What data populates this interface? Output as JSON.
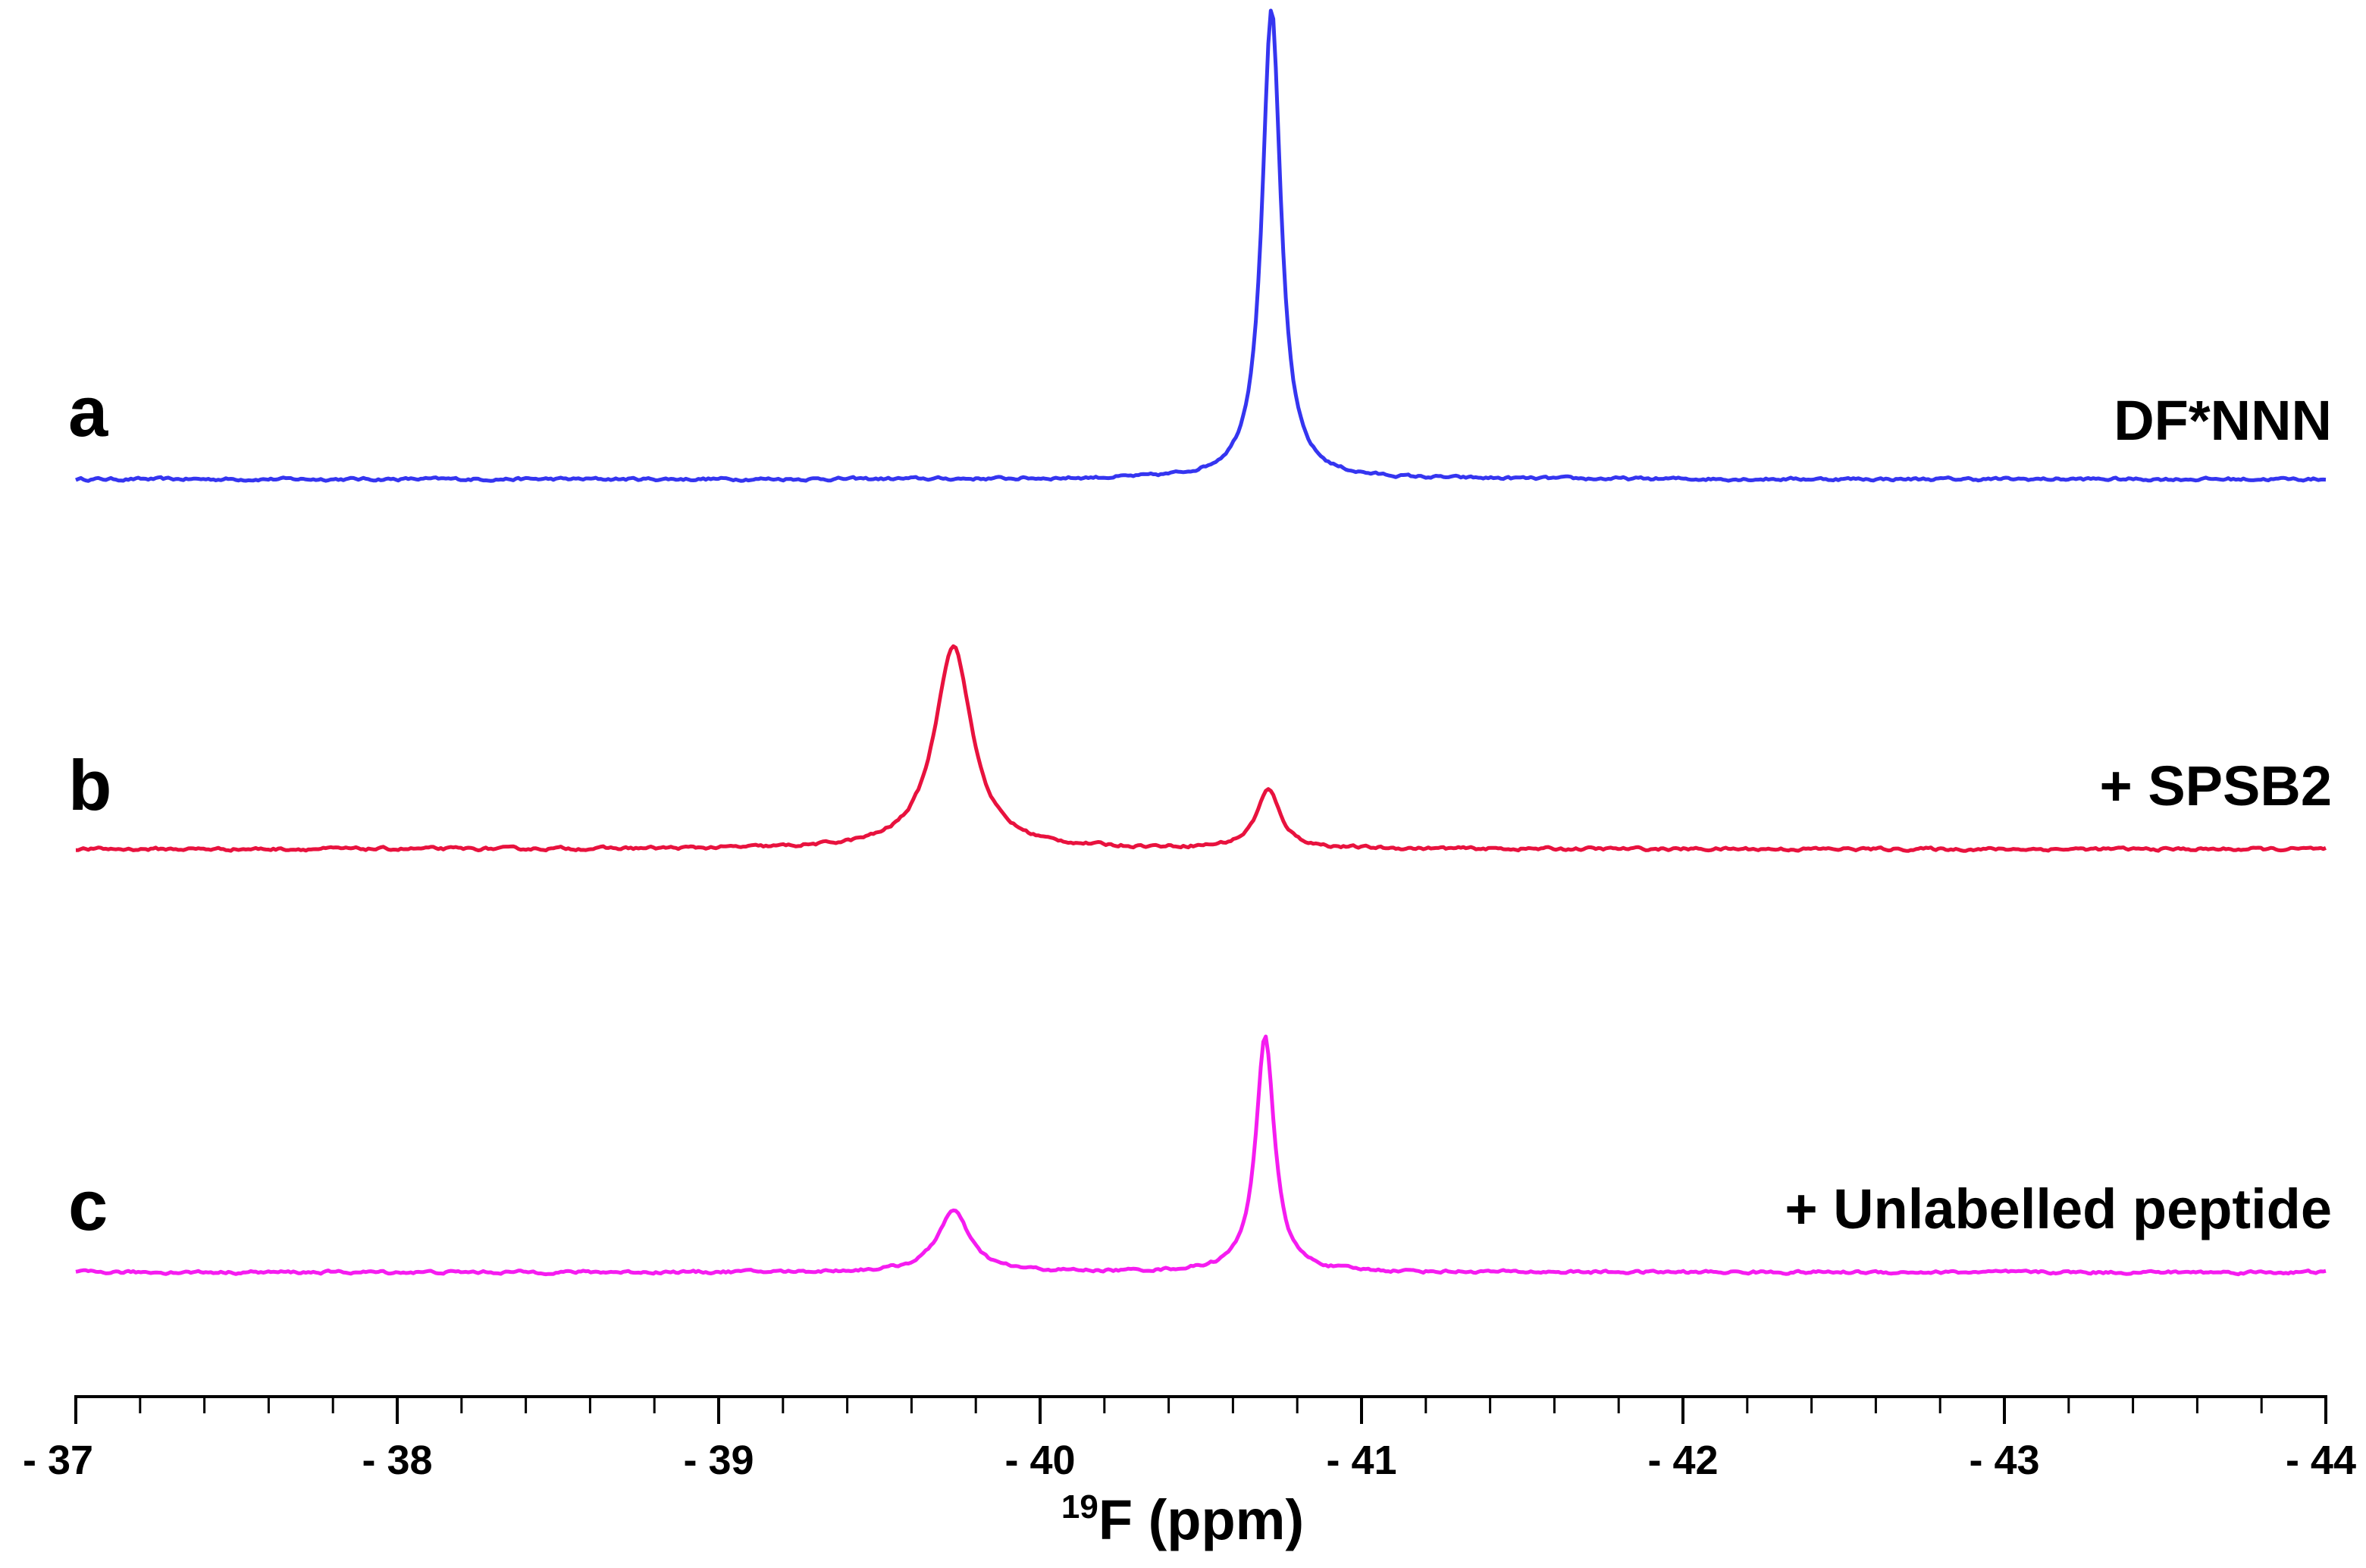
{
  "chart_data": {
    "type": "line",
    "title": "",
    "xlabel": {
      "sup": "19",
      "main": "F (ppm)"
    },
    "ylabel": "",
    "xlim": [
      -37,
      -44
    ],
    "x_reversed": true,
    "grid": false,
    "x_ticks": [
      "- 37",
      "- 38",
      "- 39",
      "- 40",
      "- 41",
      "- 42",
      "- 43",
      "- 44"
    ],
    "x_tick_values": [
      -37,
      -38,
      -39,
      -40,
      -41,
      -42,
      -43,
      -44
    ],
    "minor_ticks_per_major": 5,
    "series": [
      {
        "name": "DF*NNN",
        "panel": "a",
        "color": "#3535f0",
        "peaks": [
          {
            "x": -40.72,
            "height": 1.0,
            "width": 0.035
          }
        ],
        "noise": 0.012
      },
      {
        "name": "+ SPSB2",
        "panel": "b",
        "color": "#e8123e",
        "peaks": [
          {
            "x": -39.73,
            "height": 0.42,
            "width": 0.07
          },
          {
            "x": -40.71,
            "height": 0.12,
            "width": 0.045
          }
        ],
        "noise": 0.012
      },
      {
        "name": "+ Unlabelled peptide",
        "panel": "c",
        "color": "#f51cf0",
        "peaks": [
          {
            "x": -39.73,
            "height": 0.13,
            "width": 0.06
          },
          {
            "x": -40.7,
            "height": 0.5,
            "width": 0.035
          }
        ],
        "noise": 0.012
      }
    ]
  }
}
